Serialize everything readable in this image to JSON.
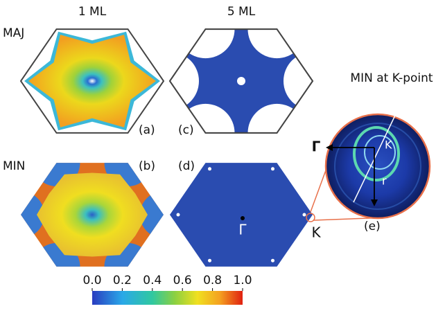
{
  "column_labels": [
    "1 ML",
    "5 ML"
  ],
  "row_labels": [
    "MAJ",
    "MIN"
  ],
  "panel_labels": [
    "(a)",
    "(b)",
    "(c)",
    "(d)",
    "(e)"
  ],
  "panel_d": {
    "gamma_label": "Γ",
    "k_label": "K"
  },
  "inset": {
    "title": "MIN at K-point",
    "gamma_label": "Γ",
    "k_label": "K",
    "r_label": "r"
  },
  "colorbar": {
    "lim": [
      0,
      1
    ],
    "ticks": [
      {
        "value": 0,
        "label": "0.0"
      },
      {
        "value": 0.2,
        "label": "0.2"
      },
      {
        "value": 0.4,
        "label": "0.4"
      },
      {
        "value": 0.6,
        "label": "0.6"
      },
      {
        "value": 0.8,
        "label": "0.8"
      },
      {
        "value": 1,
        "label": "1.0"
      }
    ]
  }
}
